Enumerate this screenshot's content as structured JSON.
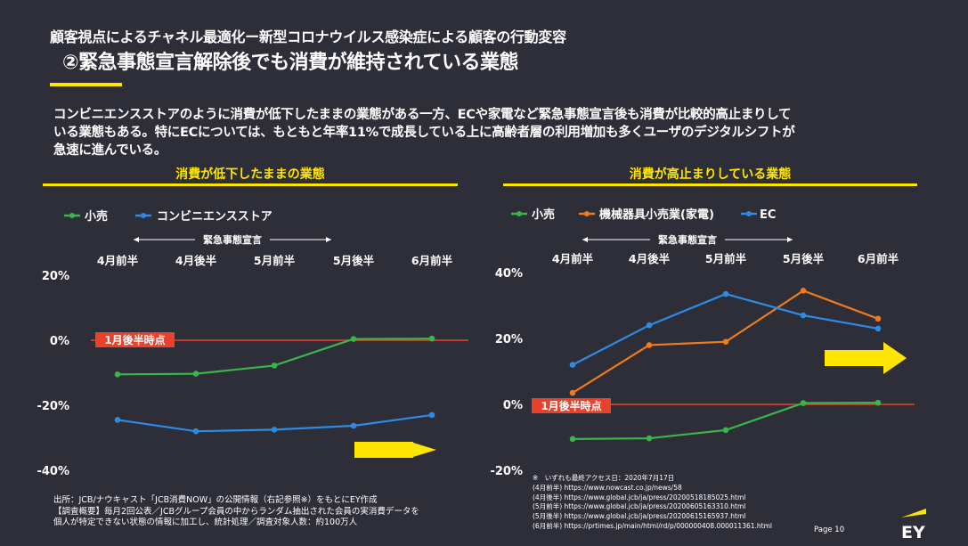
{
  "header": {
    "line1": "顧客視点によるチャネル最適化ー新型コロナウイルス感染症による顧客の行動変容",
    "line2": "②緊急事態宣言解除後でも消費が維持されている業態"
  },
  "summary_lines": [
    "コンビニエンスストアのように消費が低下したままの業態がある一方、ECや家電など緊急事態宣言後も消費が比較的高止まりして",
    "いる業態もある。特にECについては、もともと年率11%で成長している上に高齢者層の利用増加も多くユーザのデジタルシフトが",
    "急速に進んでいる。"
  ],
  "footnote_left": [
    "出所：JCB/ナウキャスト「JCB消費NOW」の公開情報（右記参照※）をもとにEY作成",
    "【調査概要】毎月2回公表／JCBグループ会員の中からランダム抽出された会員の実消費データを",
    "個人が特定できない状態の情報に加工し、統計処理／調査対象人数：約100万人"
  ],
  "footnote_right": [
    "※　いずれも最終アクセス日：2020年7月17日",
    "(4月前半) https://www.nowcast.co.jp/news/58",
    "(4月後半) https://www.global.jcb/ja/press/20200518185025.html",
    "(5月前半) https://www.global.jcb/ja/press/20200605163310.html",
    "(5月後半) https://www.global.jcb/ja/press/20200615165937.html",
    "(6月前半) https://prtimes.jp/main/html/rd/p/000000408.000011361.html"
  ],
  "page_number": "Page 10",
  "logo_text": "EY",
  "colors": {
    "background": "#2e2e38",
    "accent": "#ffe600",
    "reference_line": "#e8412c",
    "green": "#3ab54a",
    "blue": "#2d8be6",
    "orange": "#f07a1c"
  },
  "chart_data": [
    {
      "type": "line",
      "title": "消費が低下したままの業態",
      "categories": [
        "4月前半",
        "4月後半",
        "5月前半",
        "5月後半",
        "6月前半"
      ],
      "series": [
        {
          "name": "小売",
          "color": "#3ab54a",
          "values": [
            -10.5,
            -10.3,
            -7.8,
            0.4,
            0.5
          ]
        },
        {
          "name": "コンビニエンスストア",
          "color": "#2d8be6",
          "values": [
            -24.5,
            -28.0,
            -27.5,
            -26.3,
            -23.0
          ]
        }
      ],
      "y_ticks": [
        20,
        0,
        -20,
        -40
      ],
      "y_tick_labels": [
        "20%",
        "0%",
        "-20%",
        "-40%"
      ],
      "ylim": [
        -40,
        20
      ],
      "emergency_span": {
        "label": "緊急事態宣言",
        "from_index": 0,
        "to_index": 3
      },
      "reference": {
        "value": 0,
        "label": "1月後半時点"
      },
      "legend_position": "top-left",
      "arrow_direction": "right"
    },
    {
      "type": "line",
      "title": "消費が高止まりしている業態",
      "categories": [
        "4月前半",
        "4月後半",
        "5月前半",
        "5月後半",
        "6月前半"
      ],
      "series": [
        {
          "name": "小売",
          "color": "#3ab54a",
          "values": [
            -10.5,
            -10.3,
            -7.8,
            0.4,
            0.5
          ]
        },
        {
          "name": "機械器具小売業(家電)",
          "color": "#f07a1c",
          "values": [
            3.5,
            18.0,
            19.0,
            34.5,
            26.0
          ]
        },
        {
          "name": "EC",
          "color": "#2d8be6",
          "values": [
            12.0,
            24.0,
            33.5,
            27.0,
            23.0
          ]
        }
      ],
      "y_ticks": [
        40,
        20,
        0,
        -20
      ],
      "y_tick_labels": [
        "40%",
        "20%",
        "0%",
        "-20%"
      ],
      "ylim": [
        -20,
        40
      ],
      "emergency_span": {
        "label": "緊急事態宣言",
        "from_index": 0,
        "to_index": 3
      },
      "reference": {
        "value": 0,
        "label": "1月後半時点"
      },
      "legend_position": "top-left",
      "arrow_direction": "right"
    }
  ]
}
